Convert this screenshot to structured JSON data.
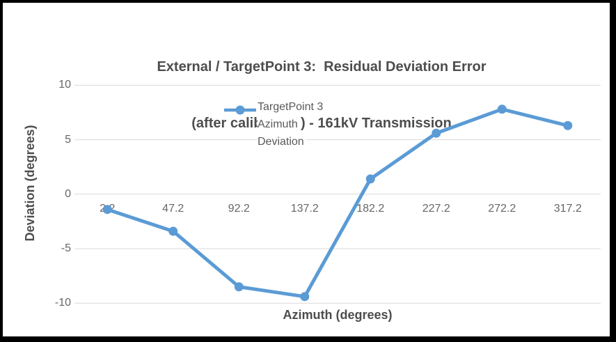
{
  "window": {
    "background": "#ffffff",
    "frame_color": "#000000"
  },
  "title": {
    "line1": "External / TargetPoint 3:  Residual Deviation Error",
    "line2": "(after calibration) - 161kV Transmission"
  },
  "y_axis": {
    "title": "Deviation (degrees)",
    "tick_labels": [
      "10",
      "5",
      "0",
      "-5",
      "-10"
    ]
  },
  "x_axis": {
    "title": "Azimuth (degrees)",
    "tick_labels": [
      "2.2",
      "47.2",
      "92.2",
      "137.2",
      "182.2",
      "227.2",
      "272.2",
      "317.2"
    ]
  },
  "legend": {
    "lines": [
      "TargetPoint 3",
      "Azimuth",
      "Deviation"
    ],
    "marker": "line-with-circle-icon"
  },
  "colors": {
    "series": "#5B9BD5",
    "gridline": "#D9D9D9",
    "title_text": "#4d4d4d",
    "tick_text": "#666666",
    "legend_text": "#595959"
  },
  "chart_data": {
    "type": "line",
    "title": "External / TargetPoint 3:  Residual Deviation Error (after calibration) - 161kV Transmission",
    "xlabel": "Azimuth (degrees)",
    "ylabel": "Deviation (degrees)",
    "categories": [
      2.2,
      47.2,
      92.2,
      137.2,
      182.2,
      227.2,
      272.2,
      317.2
    ],
    "series": [
      {
        "name": "TargetPoint 3 Azimuth Deviation",
        "values": [
          -1.4,
          -3.4,
          -8.5,
          -9.4,
          1.4,
          5.6,
          7.8,
          6.3
        ]
      }
    ],
    "ylim": [
      -10,
      10
    ],
    "ytick_step": 5,
    "grid": true,
    "legend_position": "inside-top",
    "marker": "circle"
  }
}
